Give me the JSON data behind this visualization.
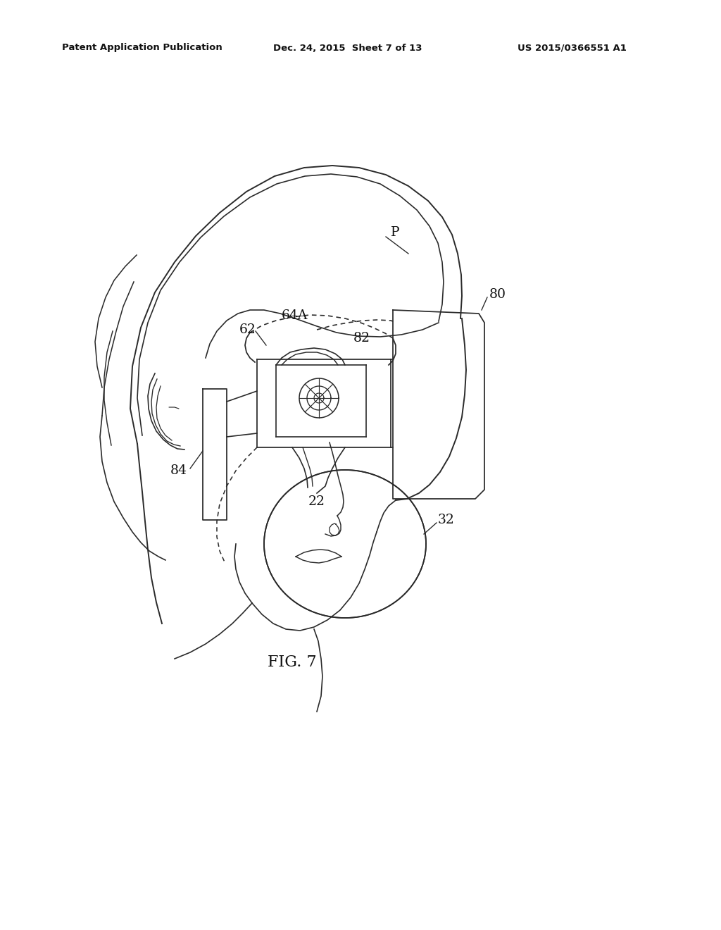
{
  "background_color": "#ffffff",
  "line_color": "#2a2a2a",
  "header_left": "Patent Application Publication",
  "header_center": "Dec. 24, 2015  Sheet 7 of 13",
  "header_right": "US 2015/0366551 A1",
  "figure_label": "FIG. 7",
  "lw": 1.4
}
